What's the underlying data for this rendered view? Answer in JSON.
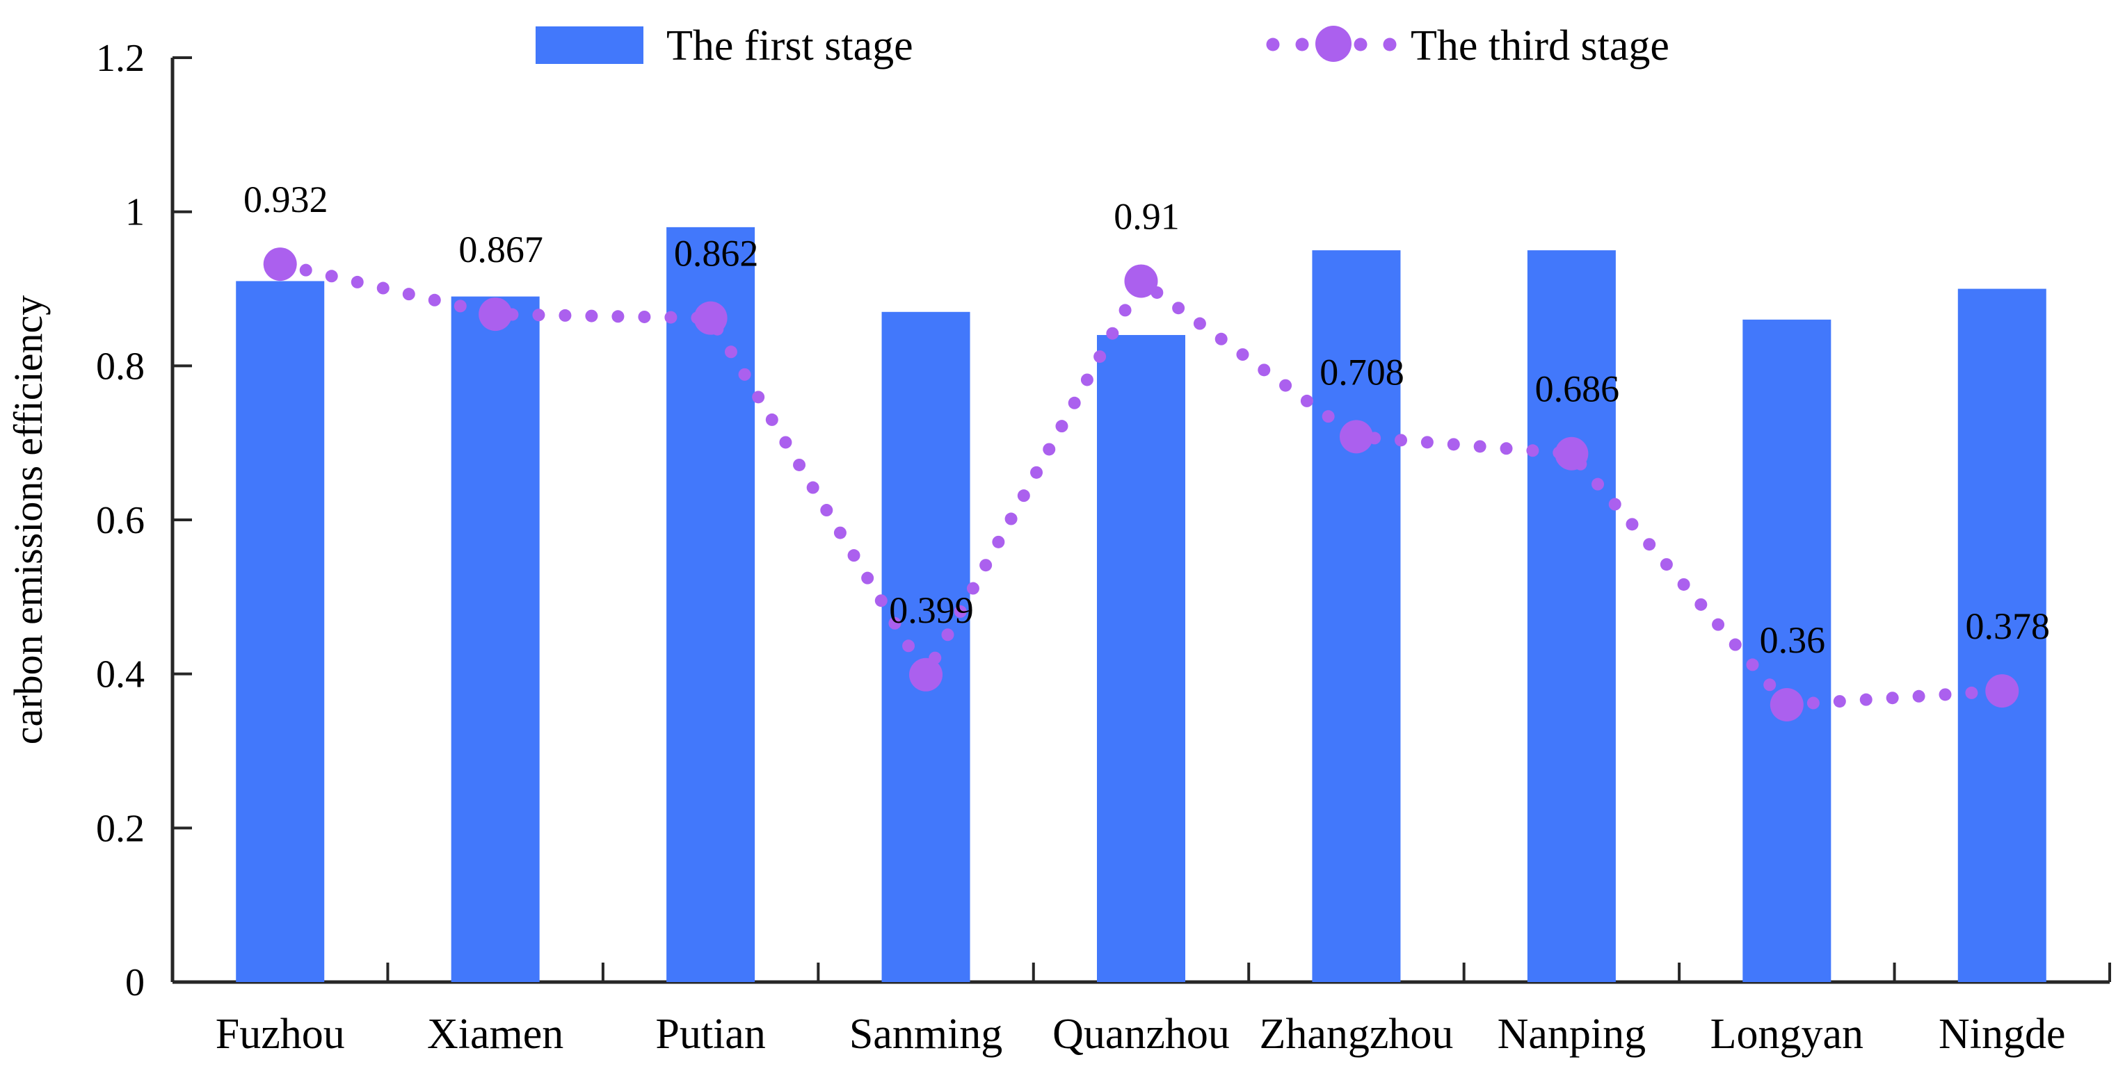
{
  "chart_data": {
    "type": "combo_bar_line",
    "title": "",
    "xlabel": "",
    "ylabel": "carbon emissions efficiency",
    "ylim": [
      0,
      1.2
    ],
    "ytick_labels": [
      "0",
      "0.2",
      "0.4",
      "0.6",
      "0.8",
      "1",
      "1.2"
    ],
    "grid": false,
    "legend_position": "top-center",
    "categories": [
      "Fuzhou",
      "Xiamen",
      "Putian",
      "Sanming",
      "Quanzhou",
      "Zhangzhou",
      "Nanping",
      "Longyan",
      "Ningde"
    ],
    "series": [
      {
        "name": "The first stage",
        "type": "bar",
        "color": "#4278fb",
        "values": [
          0.91,
          0.89,
          0.98,
          0.87,
          0.84,
          0.95,
          0.95,
          0.86,
          0.9
        ]
      },
      {
        "name": "The third stage",
        "type": "line",
        "line_style": "dotted",
        "color": "#ab60ee",
        "values": [
          0.932,
          0.867,
          0.862,
          0.399,
          0.91,
          0.708,
          0.686,
          0.36,
          0.378
        ],
        "point_labels": [
          "0.932",
          "0.867",
          "0.862",
          "0.399",
          "0.91",
          "0.708",
          "0.686",
          "0.36",
          "0.378"
        ]
      }
    ]
  },
  "colors": {
    "bar": "#4278fb",
    "line_marker": "#ab60ee",
    "axis": "#262626",
    "label_text": "#000000",
    "background": "#ffffff"
  }
}
